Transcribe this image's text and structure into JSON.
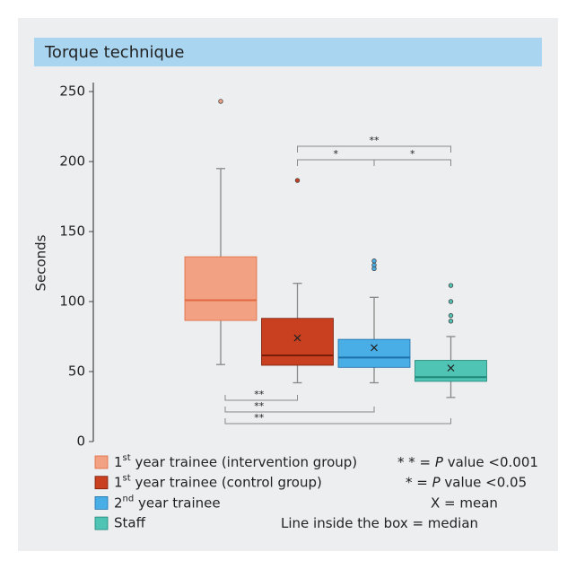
{
  "chart_data": {
    "type": "box",
    "title": "Torque technique",
    "ylabel": "Seconds",
    "ylim": [
      0,
      250
    ],
    "yticks": [
      0,
      50,
      100,
      150,
      200,
      250
    ],
    "series": [
      {
        "name": "1st year trainee (intervention group)",
        "color": "#f2a283",
        "median_color": "#e0683e",
        "min": 55,
        "q1": 86.5,
        "median": 101,
        "q3": 132,
        "max": 195,
        "mean": null,
        "outliers": [
          243
        ]
      },
      {
        "name": "1st year trainee (control group)",
        "color": "#c8401f",
        "median_color": "#7a1d08",
        "min": 42,
        "q1": 54.5,
        "median": 61.5,
        "q3": 88,
        "max": 113,
        "mean": 74,
        "outliers": [
          186.5
        ]
      },
      {
        "name": "2nd year trainee",
        "color": "#4aaee6",
        "median_color": "#1d6fa8",
        "min": 42,
        "q1": 53,
        "median": 60,
        "q3": 73,
        "max": 103,
        "mean": 67,
        "outliers": [
          129,
          126,
          123.5
        ]
      },
      {
        "name": "Staff",
        "color": "#4fc4b4",
        "median_color": "#1f8577",
        "min": 31.5,
        "q1": 43,
        "median": 46,
        "q3": 58,
        "max": 75,
        "mean": 52.5,
        "outliers": [
          111.5,
          100,
          90,
          86
        ]
      }
    ],
    "brackets": [
      {
        "from": 1,
        "to": 3,
        "label": "**"
      },
      {
        "from": 1,
        "to": 2,
        "label": "*"
      },
      {
        "from": 2,
        "to": 3,
        "label": "*"
      },
      {
        "from": 0,
        "to": 1,
        "label": "**"
      },
      {
        "from": 0,
        "to": 2,
        "label": "**"
      },
      {
        "from": 0,
        "to": 3,
        "label": "**"
      }
    ],
    "notes": [
      {
        "prefix": "* * = ",
        "italic": "P",
        "text": " value <0.001"
      },
      {
        "prefix": "* = ",
        "italic": "P",
        "text": " value <0.05"
      },
      {
        "prefix": "X = mean"
      },
      {
        "prefix": "Line inside the box = median"
      }
    ]
  }
}
